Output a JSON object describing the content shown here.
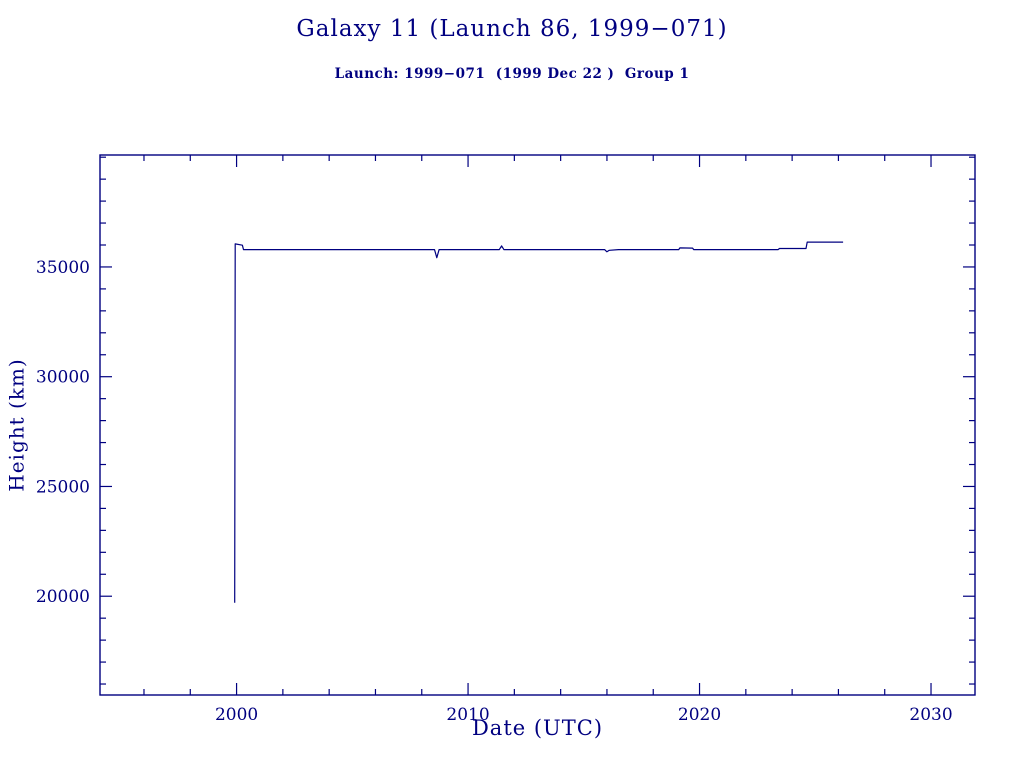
{
  "chart_data": {
    "type": "line",
    "title": "Galaxy 11 (Launch 86, 1999−071)",
    "subtitle": "Launch: 1999−071  (1999 Dec 22 )  Group 1",
    "xlabel": "Date (UTC)",
    "ylabel": "Height (km)",
    "color": "#000080",
    "grid": false,
    "legend": "none",
    "xlim": [
      1994.1,
      2031.9
    ],
    "ylim": [
      15500,
      40100
    ],
    "xticks": [
      2000,
      2010,
      2020,
      2030
    ],
    "yticks": [
      20000,
      25000,
      30000,
      35000
    ],
    "xminor": 2,
    "yminor": 1000,
    "series": [
      {
        "name": "height",
        "points": [
          [
            1999.92,
            19700
          ],
          [
            1999.94,
            36050
          ],
          [
            2000.25,
            35990
          ],
          [
            2000.3,
            35790
          ],
          [
            2008.55,
            35790
          ],
          [
            2008.65,
            35420
          ],
          [
            2008.75,
            35790
          ],
          [
            2011.35,
            35790
          ],
          [
            2011.45,
            35960
          ],
          [
            2011.55,
            35790
          ],
          [
            2015.9,
            35790
          ],
          [
            2016.0,
            35690
          ],
          [
            2016.1,
            35760
          ],
          [
            2016.5,
            35790
          ],
          [
            2019.1,
            35790
          ],
          [
            2019.15,
            35870
          ],
          [
            2019.7,
            35860
          ],
          [
            2019.75,
            35790
          ],
          [
            2023.4,
            35790
          ],
          [
            2023.45,
            35840
          ],
          [
            2024.6,
            35840
          ],
          [
            2024.65,
            36130
          ],
          [
            2026.2,
            36130
          ]
        ]
      }
    ]
  }
}
